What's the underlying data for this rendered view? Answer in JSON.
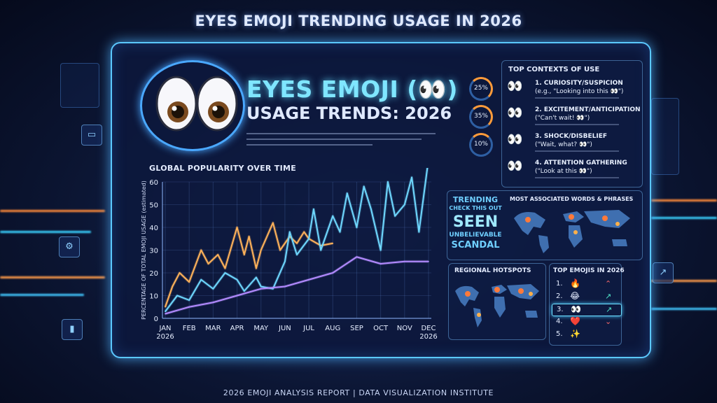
{
  "page_title": "EYES EMOJI TRENDING USAGE IN 2026",
  "footer": "2026 EMOJI ANALYSIS REPORT | DATA VISUALIZATION INSTITUTE",
  "hero": {
    "title": "EYES EMOJI (👀)",
    "subtitle": "USAGE TRENDS: 2026"
  },
  "chart": {
    "title": "GLOBAL POPULARITY OVER TIME",
    "ylabel": "PERCENTAGE OF TOTAL EMOJI USAGE (estimated)",
    "x_last_line2": "2026",
    "x_first_line2": "2026",
    "y_ticks": [
      "0",
      "10",
      "20",
      "30",
      "40",
      "50",
      "60"
    ]
  },
  "chart_data": {
    "type": "line",
    "ylabel": "PERCENTAGE OF TOTAL EMOJI USAGE (estimated)",
    "ylim": [
      0,
      60
    ],
    "categories": [
      "JAN",
      "FEB",
      "MAR",
      "APR",
      "MAY",
      "JUN",
      "JUL",
      "AUG",
      "SEP",
      "OCT",
      "NOV",
      "DEC"
    ],
    "series": [
      {
        "name": "",
        "color": "#ffb25a",
        "x": [
          0,
          0.3,
          0.6,
          1.0,
          1.5,
          1.8,
          2.2,
          2.5,
          3.0,
          3.3,
          3.5,
          3.8,
          4.0,
          4.5,
          4.8,
          5.2,
          5.5,
          5.8,
          6.0,
          6.5,
          7.0
        ],
        "values": [
          5,
          14,
          20,
          16,
          30,
          24,
          28,
          22,
          40,
          28,
          36,
          22,
          30,
          42,
          30,
          36,
          33,
          38,
          35,
          32,
          33
        ]
      },
      {
        "name": "",
        "color": "#6fd8ff",
        "x": [
          0,
          0.5,
          1.0,
          1.5,
          2.0,
          2.5,
          3.0,
          3.3,
          3.8,
          4.0,
          4.5,
          5.0,
          5.2,
          5.5,
          6.0,
          6.2,
          6.5,
          7.0,
          7.3,
          7.6,
          8.0,
          8.3,
          8.6,
          9.0,
          9.3,
          9.6,
          10.0,
          10.3,
          10.6,
          11.0
        ],
        "values": [
          3,
          10,
          8,
          17,
          13,
          20,
          17,
          12,
          18,
          14,
          13,
          25,
          38,
          28,
          35,
          48,
          30,
          45,
          38,
          55,
          40,
          58,
          48,
          30,
          60,
          45,
          50,
          62,
          38,
          70
        ]
      },
      {
        "name": "",
        "color": "#b38bff",
        "x": [
          0,
          1,
          2,
          3,
          4,
          5,
          6,
          7,
          8,
          9,
          10,
          11
        ],
        "values": [
          2,
          5,
          7,
          10,
          13,
          14,
          17,
          20,
          27,
          24,
          25,
          25
        ]
      }
    ]
  },
  "gauges": [
    {
      "value": "25%",
      "level": 0.25
    },
    {
      "value": "35%",
      "level": 0.35
    },
    {
      "value": "10%",
      "level": 0.1
    }
  ],
  "contexts": {
    "title": "TOP CONTEXTS OF USE",
    "items": [
      {
        "emoji": "👀",
        "label": "1. CURIOSITY/SUSPICION",
        "quote": "(e.g., \"Looking into this 👀\")"
      },
      {
        "emoji": "👀",
        "label": "2. EXCITEMENT/ANTICIPATION",
        "quote": "(\"Can't wait! 👀\")"
      },
      {
        "emoji": "👀",
        "label": "3. SHOCK/DISBELIEF",
        "quote": "(\"Wait, what? 👀\")"
      },
      {
        "emoji": "👀",
        "label": "4. ATTENTION GATHERING",
        "quote": "(\"Look at this 👀\")"
      }
    ]
  },
  "trending": [
    "TRENDING",
    "CHECK THIS OUT",
    "SEEN",
    "UNBELIEVABLE",
    "SCANDAL"
  ],
  "associated_title": "MOST ASSOCIATED WORDS & PHRASES",
  "regional_title": "REGIONAL HOTSPOTS",
  "top_emojis": {
    "title": "TOP EMOJIS IN 2026",
    "rows": [
      {
        "rank": "1.",
        "emoji": "🔥",
        "arrow": "⌃",
        "color": "#ff6b6b"
      },
      {
        "rank": "2.",
        "emoji": "😂",
        "arrow": "↗",
        "color": "#4fe3c8"
      },
      {
        "rank": "3.",
        "emoji": "👀",
        "arrow": "↗",
        "color": "#4fe3c8"
      },
      {
        "rank": "4.",
        "emoji": "❤️",
        "arrow": "⌄",
        "color": "#ff6b6b"
      },
      {
        "rank": "5.",
        "emoji": "✨",
        "arrow": "",
        "color": "#4fe3c8"
      }
    ]
  }
}
